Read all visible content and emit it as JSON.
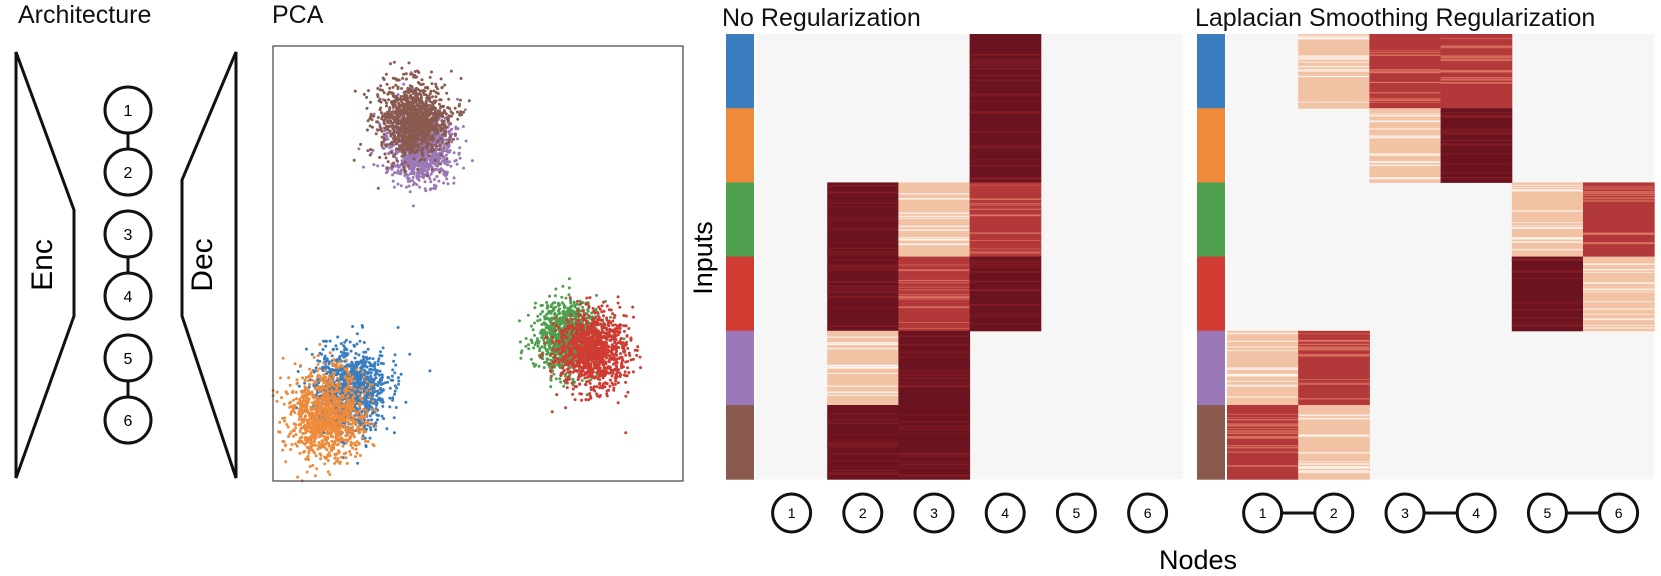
{
  "panels": {
    "architecture_title": "Architecture",
    "pca_title": "PCA",
    "no_reg_title": "No Regularization",
    "laplacian_title": "Laplacian Smoothing Regularization"
  },
  "architecture": {
    "encoder_label": "Enc",
    "decoder_label": "Dec",
    "latent_nodes": [
      "1",
      "2",
      "3",
      "4",
      "5",
      "6"
    ],
    "latent_edges": [
      [
        1,
        2
      ],
      [
        3,
        4
      ],
      [
        5,
        6
      ]
    ]
  },
  "axes": {
    "inputs_label": "Inputs",
    "nodes_label": "Nodes"
  },
  "colors": {
    "groups": [
      "#3a7ebf",
      "#ee8a3a",
      "#4ea04e",
      "#d03b32",
      "#9b78b7",
      "#8a5a4e"
    ],
    "background": "#f6f6f6",
    "dark": "#6b1420",
    "mid": "#b3383a",
    "light": "#f2c2a4"
  },
  "chart_data": [
    {
      "type": "scatter",
      "title": "PCA",
      "group_colors": [
        "#3a7ebf",
        "#ee8a3a",
        "#4ea04e",
        "#d03b32",
        "#9b78b7",
        "#8a5a4e"
      ],
      "clusters": [
        {
          "color": "#9b78b7",
          "center": [
            0.36,
            0.23
          ],
          "spread": 0.04
        },
        {
          "color": "#8a5a4e",
          "center": [
            0.34,
            0.17
          ],
          "spread": 0.042
        },
        {
          "color": "#3a7ebf",
          "center": [
            0.19,
            0.79
          ],
          "spread": 0.045
        },
        {
          "color": "#ee8a3a",
          "center": [
            0.13,
            0.85
          ],
          "spread": 0.047
        },
        {
          "color": "#4ea04e",
          "center": [
            0.72,
            0.67
          ],
          "spread": 0.038
        },
        {
          "color": "#d03b32",
          "center": [
            0.78,
            0.7
          ],
          "spread": 0.042
        }
      ]
    },
    {
      "type": "heatmap",
      "title": "No Regularization",
      "ylabel": "Inputs",
      "xlabel": "Nodes",
      "node_labels": [
        "1",
        "2",
        "3",
        "4",
        "5",
        "6"
      ],
      "node_edges": [],
      "row_group_colors": [
        "#3a7ebf",
        "#ee8a3a",
        "#4ea04e",
        "#d03b32",
        "#9b78b7",
        "#8a5a4e"
      ],
      "values": [
        [
          0,
          0,
          0,
          3,
          0,
          0
        ],
        [
          0,
          0,
          0,
          3,
          0,
          0
        ],
        [
          0,
          3,
          1,
          2,
          0,
          0
        ],
        [
          0,
          3,
          2,
          3,
          0,
          0
        ],
        [
          0,
          1,
          3,
          0,
          0,
          0
        ],
        [
          0,
          3,
          3,
          0,
          0,
          0
        ]
      ]
    },
    {
      "type": "heatmap",
      "title": "Laplacian Smoothing Regularization",
      "node_labels": [
        "1",
        "2",
        "3",
        "4",
        "5",
        "6"
      ],
      "node_edges": [
        [
          1,
          2
        ],
        [
          3,
          4
        ],
        [
          5,
          6
        ]
      ],
      "row_group_colors": [
        "#3a7ebf",
        "#ee8a3a",
        "#4ea04e",
        "#d03b32",
        "#9b78b7",
        "#8a5a4e"
      ],
      "values": [
        [
          0,
          1,
          2,
          2,
          0,
          0
        ],
        [
          0,
          0,
          1,
          3,
          0,
          0
        ],
        [
          0,
          0,
          0,
          0,
          1,
          2
        ],
        [
          0,
          0,
          0,
          0,
          3,
          1
        ],
        [
          1,
          2,
          0,
          0,
          0,
          0
        ],
        [
          2,
          1,
          0,
          0,
          0,
          0
        ]
      ]
    }
  ]
}
